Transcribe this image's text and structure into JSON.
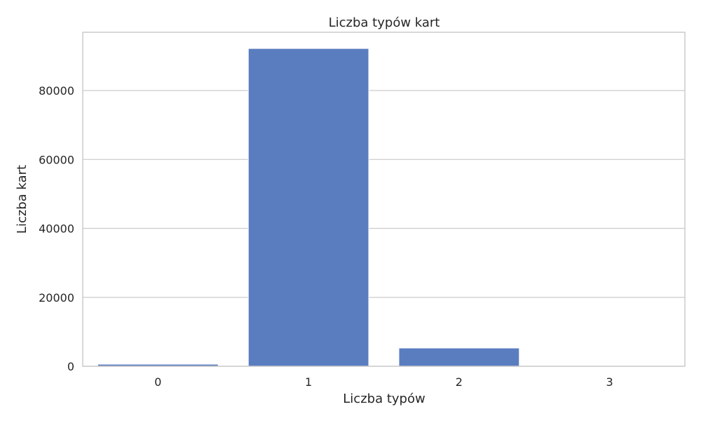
{
  "chart_data": {
    "type": "bar",
    "title": "Liczba typów kart",
    "xlabel": "Liczba typów",
    "ylabel": "Liczba kart",
    "categories": [
      "0",
      "1",
      "2",
      "3"
    ],
    "values": [
      600,
      92200,
      5300,
      30
    ],
    "ylim": [
      0,
      96900
    ],
    "yticks": [
      0,
      20000,
      40000,
      60000,
      80000
    ],
    "ytick_labels": [
      "0",
      "20000",
      "40000",
      "60000",
      "80000"
    ],
    "grid": "y",
    "bar_color": "#5a7dc0"
  }
}
